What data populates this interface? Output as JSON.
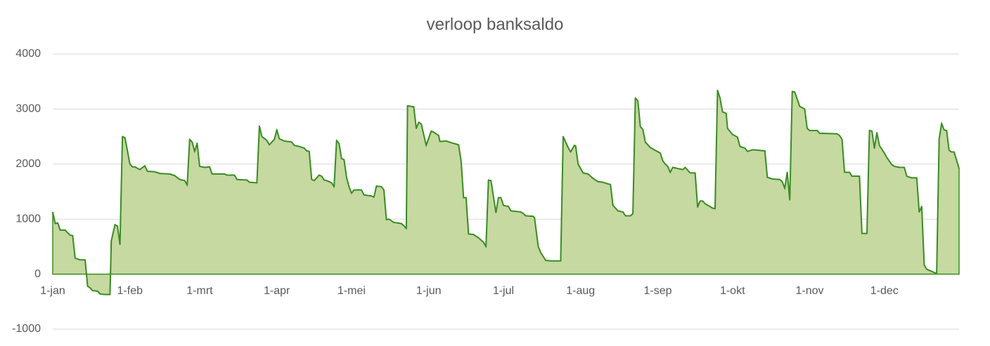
{
  "chart_data": {
    "type": "area",
    "title": "verloop banksaldo",
    "x": [
      0,
      1,
      2,
      3,
      5,
      6,
      7,
      8,
      9,
      11,
      13,
      14,
      15,
      16,
      18,
      19,
      21,
      23,
      23.5,
      25,
      26,
      27,
      28,
      29,
      31,
      32,
      33,
      35,
      37,
      38,
      41,
      43,
      47,
      49,
      51,
      53,
      54,
      55,
      56,
      57,
      58,
      59,
      61,
      63,
      64,
      69,
      70,
      73,
      74,
      78,
      79,
      82,
      83,
      84,
      86,
      87,
      89,
      90,
      91,
      93,
      96,
      97,
      99,
      101,
      102,
      103,
      104,
      105,
      107,
      108,
      109,
      110,
      112,
      113,
      114,
      115,
      116,
      117,
      118,
      119,
      120,
      121,
      124,
      125,
      128,
      129,
      130,
      132,
      133,
      134,
      135,
      137,
      140,
      141,
      142,
      142.5,
      145,
      146,
      147,
      148,
      150,
      152,
      153,
      155,
      155.5,
      158,
      160,
      163,
      164,
      165,
      166,
      167,
      169,
      171,
      173,
      174,
      175,
      176,
      178,
      179,
      180,
      181,
      183,
      184,
      188,
      189,
      190,
      193,
      193.5,
      195,
      196,
      198,
      200,
      204,
      205,
      206,
      207,
      208,
      209.5,
      210,
      211,
      213,
      215,
      217,
      219,
      221,
      223,
      224,
      225,
      227,
      229,
      230,
      232,
      233,
      234,
      235,
      236,
      237,
      238,
      240,
      242,
      244,
      245,
      246,
      247,
      248,
      249,
      251,
      253,
      254,
      256,
      258,
      259,
      260,
      261,
      262,
      265,
      266,
      267,
      268,
      269,
      270.5,
      271,
      273,
      275,
      276,
      278,
      279,
      281,
      284,
      286,
      287,
      289,
      292,
      293,
      294,
      295,
      296,
      297,
      298,
      300,
      302,
      303,
      304,
      307,
      308,
      315,
      316,
      317,
      318,
      320,
      321,
      324,
      325,
      327,
      328,
      329,
      330,
      331,
      332,
      334,
      335,
      337,
      338,
      340,
      342,
      343,
      345,
      347,
      348,
      349,
      350,
      351,
      353,
      355,
      356,
      357,
      358,
      359,
      360,
      361,
      362,
      364
    ],
    "values": [
      1130,
      920,
      930,
      800,
      800,
      750,
      710,
      700,
      290,
      260,
      260,
      -220,
      -250,
      -300,
      -310,
      -360,
      -370,
      -370,
      600,
      900,
      870,
      540,
      2500,
      2480,
      2000,
      1950,
      1950,
      1900,
      1970,
      1870,
      1860,
      1830,
      1820,
      1790,
      1720,
      1700,
      1620,
      2450,
      2400,
      2230,
      2380,
      1960,
      1940,
      1950,
      1820,
      1820,
      1800,
      1800,
      1720,
      1710,
      1670,
      1660,
      2690,
      2500,
      2430,
      2350,
      2450,
      2620,
      2460,
      2420,
      2400,
      2340,
      2320,
      2290,
      2240,
      2230,
      1720,
      1700,
      1800,
      1780,
      1710,
      1700,
      1660,
      1590,
      2430,
      2370,
      2100,
      2080,
      1760,
      1590,
      1470,
      1530,
      1530,
      1440,
      1420,
      1400,
      1600,
      1590,
      1530,
      990,
      1000,
      940,
      920,
      880,
      830,
      3060,
      3040,
      2650,
      2760,
      2730,
      2340,
      2600,
      2580,
      2520,
      2410,
      2420,
      2390,
      2350,
      2060,
      1390,
      1390,
      730,
      720,
      660,
      580,
      500,
      1710,
      1700,
      1120,
      1390,
      1390,
      1250,
      1230,
      1150,
      1130,
      1100,
      1060,
      1050,
      1020,
      500,
      390,
      250,
      240,
      240,
      2500,
      2400,
      2300,
      2220,
      2340,
      2330,
      2000,
      1840,
      1820,
      1740,
      1680,
      1670,
      1640,
      1630,
      1250,
      1150,
      1130,
      1060,
      1060,
      1100,
      3200,
      3150,
      2680,
      2630,
      2400,
      2300,
      2250,
      2200,
      2060,
      2000,
      1960,
      1850,
      1940,
      1920,
      1900,
      1940,
      1840,
      1840,
      1220,
      1330,
      1330,
      1280,
      1200,
      1190,
      3340,
      3200,
      2950,
      2920,
      2650,
      2540,
      2490,
      2320,
      2290,
      2230,
      2260,
      2250,
      2240,
      1760,
      1730,
      1720,
      1680,
      1560,
      1850,
      1350,
      3320,
      3310,
      3050,
      3000,
      2650,
      2610,
      2610,
      2560,
      2550,
      2520,
      2450,
      1850,
      1850,
      1780,
      1780,
      740,
      740,
      2610,
      2600,
      2290,
      2570,
      2340,
      2200,
      2120,
      1990,
      1960,
      1940,
      1940,
      1780,
      1750,
      1750,
      1130,
      1230,
      170,
      90,
      50,
      10,
      2460,
      2740,
      2620,
      2610,
      2250,
      2220,
      2220,
      1920
    ],
    "color": "#3b8c23",
    "fill": "#c5d9a0",
    "xlim": [
      0,
      364
    ],
    "xticks": [
      {
        "value": 0,
        "label": "1-jan"
      },
      {
        "value": 31,
        "label": "1-feb"
      },
      {
        "value": 59,
        "label": "1-mrt"
      },
      {
        "value": 90,
        "label": "1-apr"
      },
      {
        "value": 120,
        "label": "1-mei"
      },
      {
        "value": 151,
        "label": "1-jun"
      },
      {
        "value": 181,
        "label": "1-jul"
      },
      {
        "value": 212,
        "label": "1-aug"
      },
      {
        "value": 243,
        "label": "1-sep"
      },
      {
        "value": 273,
        "label": "1-okt"
      },
      {
        "value": 304,
        "label": "1-nov"
      },
      {
        "value": 334,
        "label": "1-dec"
      }
    ],
    "ylim": [
      -1000,
      4000
    ],
    "yticks": [
      -1000,
      0,
      1000,
      2000,
      3000,
      4000
    ],
    "grid": true
  }
}
